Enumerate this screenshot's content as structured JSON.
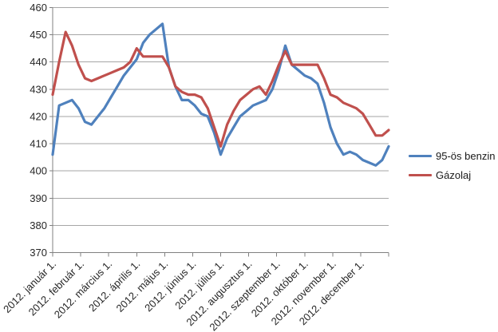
{
  "chart_data": {
    "type": "line",
    "title": "",
    "sampling": "weekly",
    "grid": "horizontal",
    "legend_position": "right",
    "x_axis": {
      "tick_labels": [
        "2012. január 1.",
        "2012. február 1.",
        "2012. március 1.",
        "2012. április 1.",
        "2012. május 1.",
        "2012. június 1.",
        "2012. július 1.",
        "2012. augusztus 1.",
        "2012. szeptember 1.",
        "2012. október 1.",
        "2012. november 1.",
        "2012. december 1."
      ],
      "label_rotation_deg": -45
    },
    "y_axis": {
      "min": 370,
      "max": 460,
      "step": 10,
      "tick_labels": [
        "370",
        "380",
        "390",
        "400",
        "410",
        "420",
        "430",
        "440",
        "450",
        "460"
      ]
    },
    "series": [
      {
        "name": "95-ös benzin",
        "color": "#4F81BD",
        "values": [
          406,
          424,
          425,
          426,
          423,
          418,
          417,
          420,
          423,
          427,
          431,
          435,
          438,
          441,
          447,
          450,
          452,
          454,
          438,
          431,
          426,
          426,
          424,
          421,
          420,
          414,
          406,
          412,
          416,
          420,
          422,
          424,
          425,
          426,
          430,
          437,
          446,
          439,
          437,
          435,
          434,
          432,
          425,
          416,
          410,
          406,
          407,
          406,
          404,
          403,
          402,
          404,
          409
        ]
      },
      {
        "name": "Gázolaj",
        "color": "#C0504D",
        "values": [
          428,
          440,
          451,
          446,
          439,
          434,
          433,
          434,
          435,
          436,
          437,
          438,
          440,
          445,
          442,
          442,
          442,
          442,
          438,
          431,
          429,
          428,
          428,
          427,
          423,
          416,
          409,
          417,
          422,
          426,
          428,
          430,
          431,
          428,
          433,
          439,
          444,
          439,
          439,
          439,
          439,
          439,
          434,
          428,
          427,
          425,
          424,
          423,
          421,
          417,
          413,
          413,
          415
        ]
      }
    ]
  },
  "colors": {
    "background": "#FFFFFF",
    "gridline": "#A6A6A6",
    "axis": "#808080",
    "tick_text": "#262626"
  }
}
